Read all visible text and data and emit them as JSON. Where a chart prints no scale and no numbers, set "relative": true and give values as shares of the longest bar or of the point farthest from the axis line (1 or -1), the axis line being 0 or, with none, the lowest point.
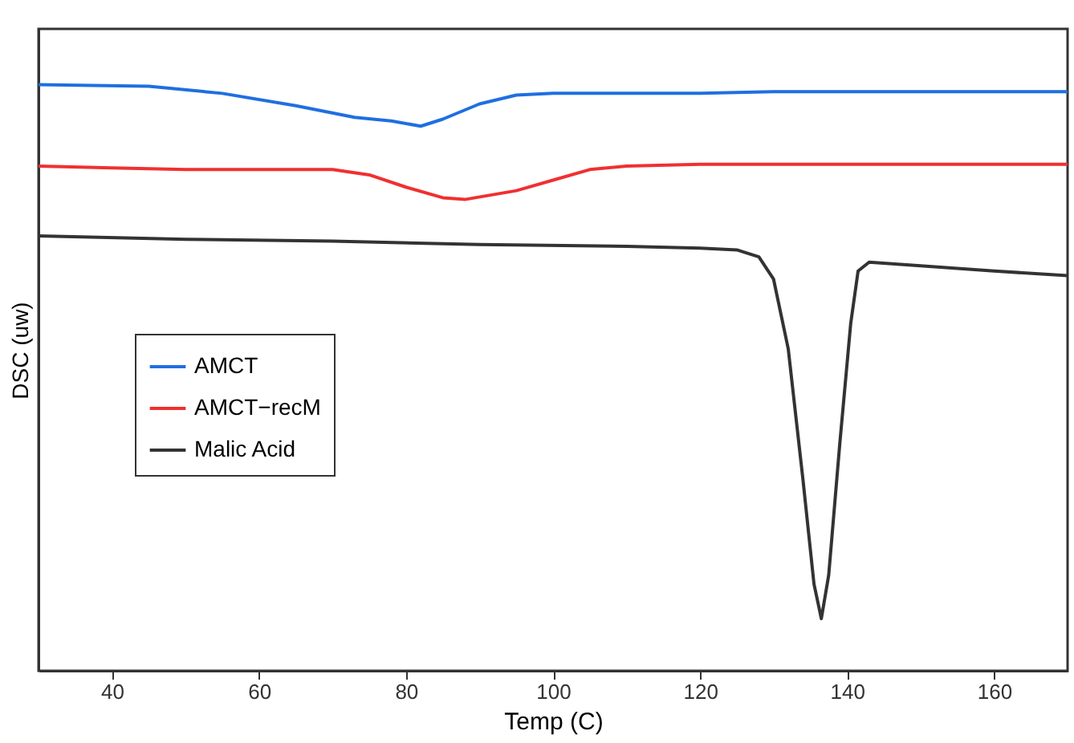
{
  "chart_data": {
    "type": "line",
    "xlabel": "Temp (C)",
    "ylabel": "DSC (uw)",
    "relative": true,
    "xlim": [
      30,
      170
    ],
    "xticks": [
      40,
      60,
      80,
      100,
      120,
      140,
      160
    ],
    "legend": "left",
    "grid": false,
    "series": [
      {
        "name": "AMCT",
        "color": "#1f6fe0",
        "x": [
          30,
          45,
          55,
          65,
          73,
          78,
          82,
          85,
          90,
          95,
          100,
          120,
          130,
          170
        ],
        "values": [
          1,
          0.997,
          0.985,
          0.964,
          0.944,
          0.938,
          0.929,
          0.941,
          0.967,
          0.982,
          0.985,
          0.985,
          0.988,
          0.988
        ]
      },
      {
        "name": "AMCT−recM",
        "color": "#f03030",
        "x": [
          30,
          40,
          50,
          70,
          75,
          80,
          85,
          88,
          95,
          100,
          105,
          110,
          120,
          170
        ],
        "values": [
          0.861,
          0.858,
          0.855,
          0.855,
          0.846,
          0.825,
          0.807,
          0.804,
          0.819,
          0.837,
          0.855,
          0.861,
          0.864,
          0.864
        ]
      },
      {
        "name": "Malic Acid",
        "color": "#333333",
        "x": [
          30,
          50,
          70,
          90,
          110,
          120,
          125,
          128,
          130,
          132,
          134,
          135.5,
          136.5,
          137.5,
          139,
          140.5,
          141.5,
          143,
          150,
          160,
          170
        ],
        "values": [
          0.742,
          0.736,
          0.733,
          0.727,
          0.724,
          0.721,
          0.718,
          0.706,
          0.668,
          0.549,
          0.326,
          0.148,
          0.089,
          0.163,
          0.386,
          0.593,
          0.682,
          0.697,
          0.691,
          0.682,
          0.674
        ]
      }
    ]
  }
}
